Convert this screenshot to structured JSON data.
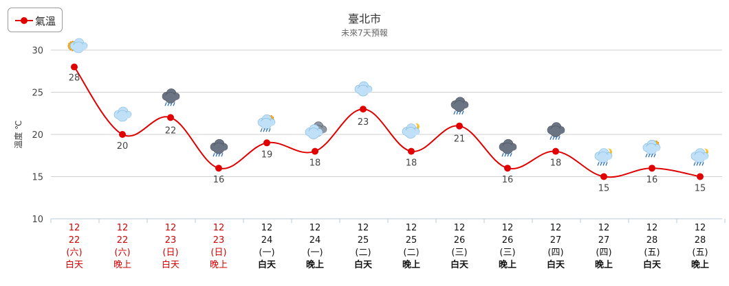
{
  "legend": {
    "series_label": "氣溫"
  },
  "chart_data": {
    "type": "line",
    "title": "臺北市",
    "subtitle": "未來7天預報",
    "ylabel": "溫度 ℃",
    "ylim": [
      10,
      30
    ],
    "yticks": [
      10,
      15,
      20,
      25,
      30
    ],
    "grid": true,
    "legend_position": "top-left",
    "line_color": "#e00000",
    "holiday_color": "#d40000",
    "normal_color": "#111111",
    "categories": [
      {
        "month": "12",
        "day": "22",
        "weekday": "(六)",
        "period": "白天",
        "holiday": true,
        "weather": "sunny-cloudy-icon"
      },
      {
        "month": "12",
        "day": "22",
        "weekday": "(六)",
        "period": "晚上",
        "holiday": true,
        "weather": "cloudy-icon"
      },
      {
        "month": "12",
        "day": "23",
        "weekday": "(日)",
        "period": "白天",
        "holiday": true,
        "weather": "rain-cloud-icon"
      },
      {
        "month": "12",
        "day": "23",
        "weekday": "(日)",
        "period": "晚上",
        "holiday": true,
        "weather": "rain-cloud-icon"
      },
      {
        "month": "12",
        "day": "24",
        "weekday": "(一)",
        "period": "白天",
        "holiday": false,
        "weather": "sun-rain-icon"
      },
      {
        "month": "12",
        "day": "24",
        "weekday": "(一)",
        "period": "晚上",
        "holiday": false,
        "weather": "overcast-icon"
      },
      {
        "month": "12",
        "day": "25",
        "weekday": "(二)",
        "period": "白天",
        "holiday": false,
        "weather": "cloudy-icon"
      },
      {
        "month": "12",
        "day": "25",
        "weekday": "(二)",
        "period": "晚上",
        "holiday": false,
        "weather": "moon-cloud-icon"
      },
      {
        "month": "12",
        "day": "26",
        "weekday": "(三)",
        "period": "白天",
        "holiday": false,
        "weather": "rain-cloud-icon"
      },
      {
        "month": "12",
        "day": "26",
        "weekday": "(三)",
        "period": "晚上",
        "holiday": false,
        "weather": "rain-cloud-icon"
      },
      {
        "month": "12",
        "day": "27",
        "weekday": "(四)",
        "period": "白天",
        "holiday": false,
        "weather": "rain-cloud-icon"
      },
      {
        "month": "12",
        "day": "27",
        "weekday": "(四)",
        "period": "晚上",
        "holiday": false,
        "weather": "moon-rain-icon"
      },
      {
        "month": "12",
        "day": "28",
        "weekday": "(五)",
        "period": "白天",
        "holiday": false,
        "weather": "sun-rain-icon"
      },
      {
        "month": "12",
        "day": "28",
        "weekday": "(五)",
        "period": "晚上",
        "holiday": false,
        "weather": "moon-rain-icon"
      }
    ],
    "series": [
      {
        "name": "氣溫",
        "values": [
          28,
          20,
          22,
          16,
          19,
          18,
          23,
          18,
          21,
          16,
          18,
          15,
          16,
          15
        ]
      }
    ]
  }
}
